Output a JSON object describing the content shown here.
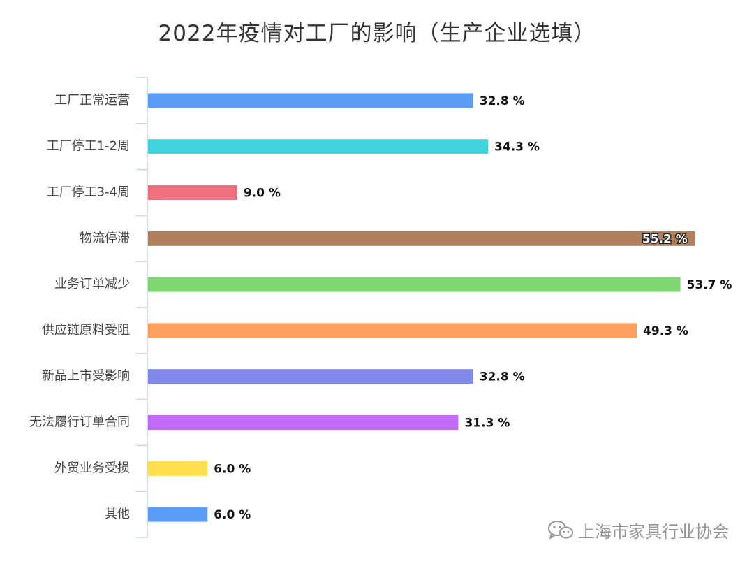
{
  "chart_data": {
    "type": "bar",
    "orientation": "horizontal",
    "title": "2022年疫情对工厂的影响（生产企业选填）",
    "xlabel": "",
    "ylabel": "",
    "xlim": [
      0,
      60
    ],
    "value_suffix": " %",
    "grid": false,
    "legend": "none",
    "categories": [
      "工厂正常运营",
      "工厂停工1-2周",
      "工厂停工3-4周",
      "物流停滞",
      "业务订单减少",
      "供应链原料受阻",
      "新品上市受影响",
      "无法履行订单合同",
      "外贸业务受损",
      "其他"
    ],
    "values": [
      32.8,
      34.3,
      9.0,
      55.2,
      53.7,
      49.3,
      32.8,
      31.3,
      6.0,
      6.0
    ],
    "value_labels": [
      "32.8 %",
      "34.3 %",
      "9.0 %",
      "55.2 %",
      "53.7 %",
      "49.3 %",
      "32.8 %",
      "31.3 %",
      "6.0 %",
      "6.0 %"
    ],
    "colors": [
      "#5b9cf6",
      "#40d4dc",
      "#f0707e",
      "#b07f5e",
      "#7ed672",
      "#ffa05e",
      "#8089e8",
      "#c26bf7",
      "#ffdf4e",
      "#5b9cf6"
    ]
  },
  "watermark": {
    "icon": "wechat-icon",
    "text": "上海市家具行业协会"
  }
}
